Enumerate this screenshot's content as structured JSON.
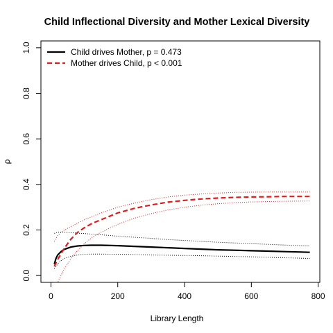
{
  "chart_data": {
    "type": "line",
    "title": "Child Inflectional Diversity and Mother Lexical Diversity",
    "xlabel": "Library Length",
    "ylabel": "ρ",
    "xlim": [
      -30,
      805
    ],
    "ylim": [
      -0.03,
      1.03
    ],
    "xticks": [
      0,
      200,
      400,
      600,
      800
    ],
    "yticks": [
      0.0,
      0.2,
      0.4,
      0.6,
      0.8,
      1.0
    ],
    "xtick_labels": [
      "0",
      "200",
      "400",
      "600",
      "800"
    ],
    "ytick_labels": [
      "0.0",
      "0.2",
      "0.4",
      "0.6",
      "0.8",
      "1.0"
    ],
    "legend_position": "top-left",
    "grid": false,
    "series": [
      {
        "name": "Child drives Mother, p = 0.473",
        "color": "#000000",
        "style": "solid",
        "x": [
          10,
          15,
          20,
          30,
          40,
          60,
          80,
          100,
          120,
          150,
          200,
          250,
          300,
          350,
          400,
          450,
          500,
          550,
          600,
          650,
          700,
          750,
          775
        ],
        "y": [
          0.05,
          0.075,
          0.09,
          0.105,
          0.115,
          0.125,
          0.13,
          0.132,
          0.133,
          0.133,
          0.131,
          0.128,
          0.125,
          0.122,
          0.119,
          0.116,
          0.113,
          0.111,
          0.109,
          0.107,
          0.105,
          0.103,
          0.102
        ],
        "upper": [
          0.185,
          0.188,
          0.19,
          0.19,
          0.19,
          0.188,
          0.186,
          0.184,
          0.182,
          0.179,
          0.173,
          0.168,
          0.163,
          0.158,
          0.154,
          0.15,
          0.146,
          0.143,
          0.14,
          0.137,
          0.134,
          0.131,
          0.13
        ],
        "lower": [
          0.03,
          0.04,
          0.05,
          0.065,
          0.075,
          0.085,
          0.09,
          0.093,
          0.094,
          0.094,
          0.093,
          0.092,
          0.09,
          0.089,
          0.088,
          0.087,
          0.085,
          0.084,
          0.082,
          0.08,
          0.078,
          0.076,
          0.075
        ]
      },
      {
        "name": "Mother drives Child, p < 0.001",
        "color": "#e31a1c",
        "style": "dashed",
        "x": [
          10,
          20,
          30,
          40,
          60,
          80,
          100,
          125,
          150,
          200,
          250,
          300,
          350,
          400,
          450,
          500,
          550,
          600,
          650,
          700,
          750,
          775
        ],
        "y": [
          0.04,
          0.07,
          0.095,
          0.12,
          0.16,
          0.19,
          0.21,
          0.23,
          0.245,
          0.275,
          0.295,
          0.31,
          0.322,
          0.33,
          0.336,
          0.34,
          0.343,
          0.345,
          0.346,
          0.347,
          0.347,
          0.347
        ],
        "upper": [
          0.15,
          0.175,
          0.19,
          0.2,
          0.215,
          0.23,
          0.245,
          0.26,
          0.275,
          0.3,
          0.318,
          0.333,
          0.345,
          0.353,
          0.358,
          0.362,
          0.365,
          0.366,
          0.367,
          0.367,
          0.367,
          0.367
        ],
        "lower": [
          -0.06,
          -0.03,
          0.0,
          0.03,
          0.075,
          0.11,
          0.14,
          0.17,
          0.19,
          0.225,
          0.252,
          0.272,
          0.288,
          0.3,
          0.309,
          0.315,
          0.32,
          0.323,
          0.325,
          0.326,
          0.327,
          0.327
        ]
      }
    ]
  }
}
